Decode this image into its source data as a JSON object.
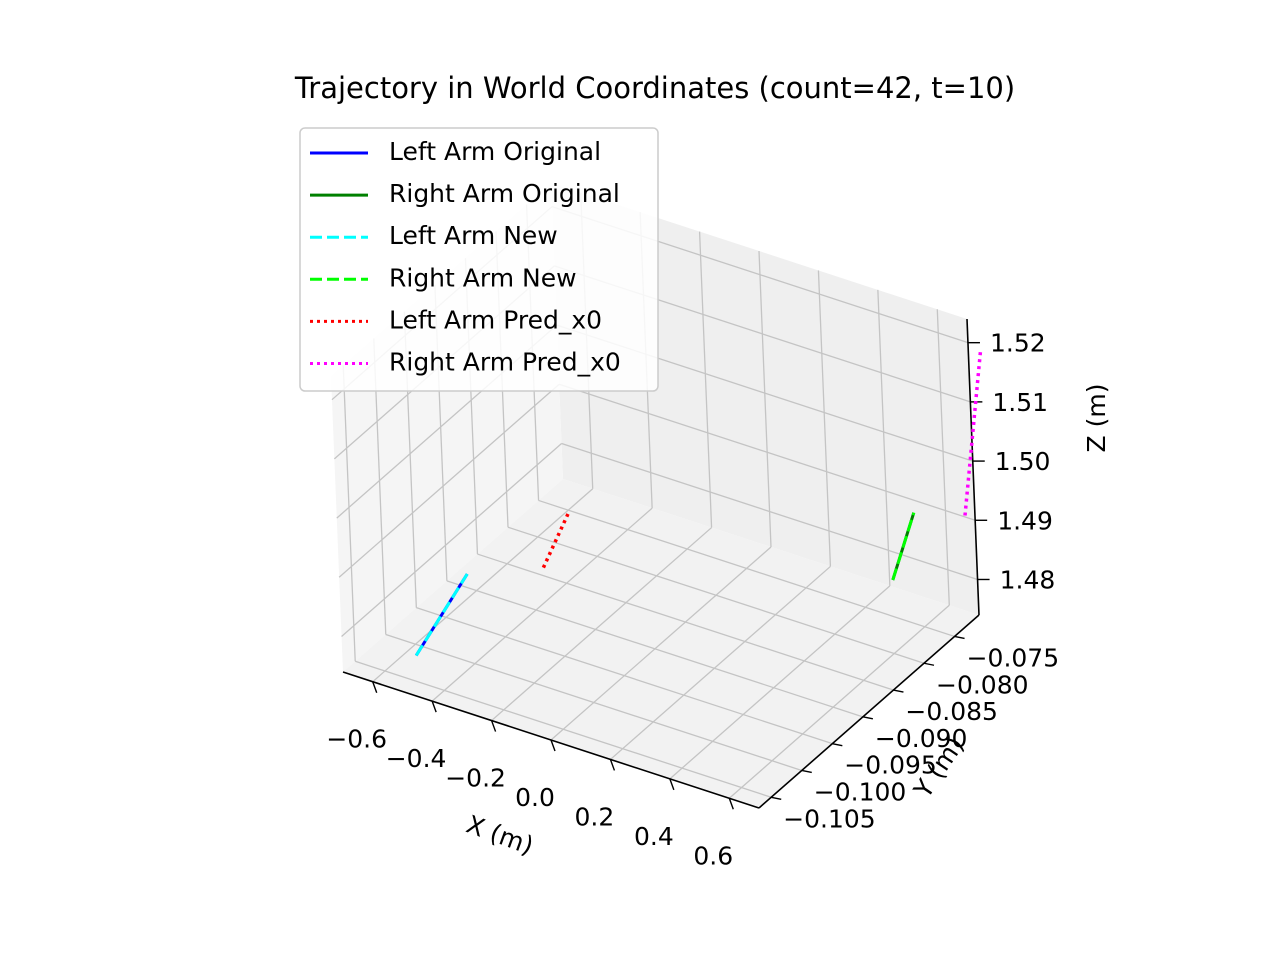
{
  "chart_data": {
    "type": "line3d",
    "title": "Trajectory in World Coordinates (count=42, t=10)",
    "xlabel": "X (m)",
    "ylabel": "Y (m)",
    "zlabel": "Z (m)",
    "xlim": [
      -0.7,
      0.7
    ],
    "ylim": [
      -0.107,
      -0.071
    ],
    "zlim": [
      1.474,
      1.524
    ],
    "xticks": [
      -0.6,
      -0.4,
      -0.2,
      0.0,
      0.2,
      0.4,
      0.6
    ],
    "xtick_labels": [
      "−0.6",
      "−0.4",
      "−0.2",
      "0.0",
      "0.2",
      "0.4",
      "0.6"
    ],
    "yticks": [
      -0.105,
      -0.1,
      -0.095,
      -0.09,
      -0.085,
      -0.08,
      -0.075
    ],
    "ytick_labels": [
      "−0.105",
      "−0.100",
      "−0.095",
      "−0.090",
      "−0.085",
      "−0.080",
      "−0.075"
    ],
    "zticks": [
      1.48,
      1.49,
      1.5,
      1.51,
      1.52
    ],
    "ztick_labels": [
      "1.48",
      "1.49",
      "1.50",
      "1.51",
      "1.52"
    ],
    "grid": true,
    "legend_position": "top-left",
    "series": [
      {
        "name": "Left Arm Original",
        "color": "#0000ff",
        "style": "solid",
        "x": [
          -0.5,
          -0.44
        ],
        "y": [
          -0.1046,
          -0.0988
        ],
        "z": [
          1.4779,
          1.4874
        ]
      },
      {
        "name": "Right Arm Original",
        "color": "#008000",
        "style": "solid",
        "x": [
          0.48,
          0.52
        ],
        "y": [
          -0.0742,
          -0.0723
        ],
        "z": [
          1.4792,
          1.4895
        ]
      },
      {
        "name": "Left Arm New",
        "color": "#00ffff",
        "style": "dashed",
        "x": [
          -0.5,
          -0.44
        ],
        "y": [
          -0.1046,
          -0.0988
        ],
        "z": [
          1.4779,
          1.4874
        ]
      },
      {
        "name": "Right Arm New",
        "color": "#00ff00",
        "style": "dashed",
        "x": [
          0.48,
          0.52
        ],
        "y": [
          -0.0742,
          -0.0723
        ],
        "z": [
          1.4792,
          1.4895
        ]
      },
      {
        "name": "Left Arm Pred_x0",
        "color": "#ff0000",
        "style": "dotted",
        "x": [
          -0.3,
          -0.28
        ],
        "y": [
          -0.0932,
          -0.0898
        ],
        "z": [
          1.4857,
          1.4922
        ]
      },
      {
        "name": "Right Arm Pred_x0",
        "color": "#ff00ff",
        "style": "dotted",
        "x": [
          0.72,
          0.7
        ],
        "y": [
          -0.0735,
          -0.0691
        ],
        "z": [
          1.4934,
          1.5167
        ]
      }
    ]
  }
}
